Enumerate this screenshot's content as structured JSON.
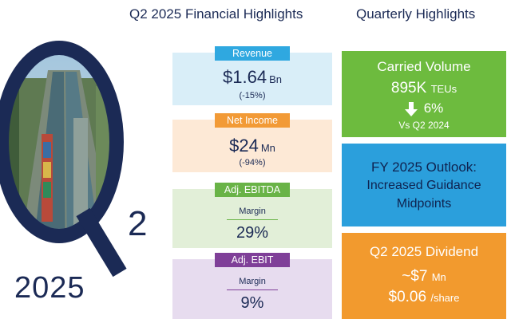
{
  "headings": {
    "financial": "Q2 2025 Financial Highlights",
    "quarterly": "Quarterly Highlights"
  },
  "emblem": {
    "letter_two": "2",
    "year": "2025",
    "image_description_icon": "canal-locks-photo"
  },
  "financial": {
    "revenue": {
      "tag": "Revenue",
      "value": "$1.64",
      "unit": "Bn",
      "change": "(-15%)"
    },
    "net_income": {
      "tag": "Net Income",
      "value": "$24",
      "unit": "Mn",
      "change": "(-94%)"
    },
    "ebitda": {
      "tag": "Adj. EBITDA",
      "label": "Margin",
      "value": "29%"
    },
    "ebit": {
      "tag": "Adj. EBIT",
      "label": "Margin",
      "value": "9%"
    }
  },
  "quarterly": {
    "volume": {
      "title": "Carried Volume",
      "value": "895K",
      "unit": "TEUs",
      "change": "6%",
      "compare": "Vs Q2 2024",
      "arrow_icon": "arrow-down-icon"
    },
    "outlook": {
      "line1": "FY 2025 Outlook:",
      "line2": "Increased Guidance",
      "line3": "Midpoints"
    },
    "dividend": {
      "title": "Q2 2025 Dividend",
      "amount": "~$7",
      "amount_unit": "Mn",
      "per_share": "$0.06",
      "per_share_unit": "/share"
    }
  },
  "colors": {
    "navy": "#1b2a55",
    "revenue_bg": "#d9eef8",
    "net_income_bg": "#fde9d6",
    "ebitda_bg": "#e2efd8",
    "ebit_bg": "#e7dcef",
    "green": "#6dbb3e",
    "blue": "#2b9fdc",
    "orange": "#f29a2e",
    "purple": "#7f3f98"
  }
}
